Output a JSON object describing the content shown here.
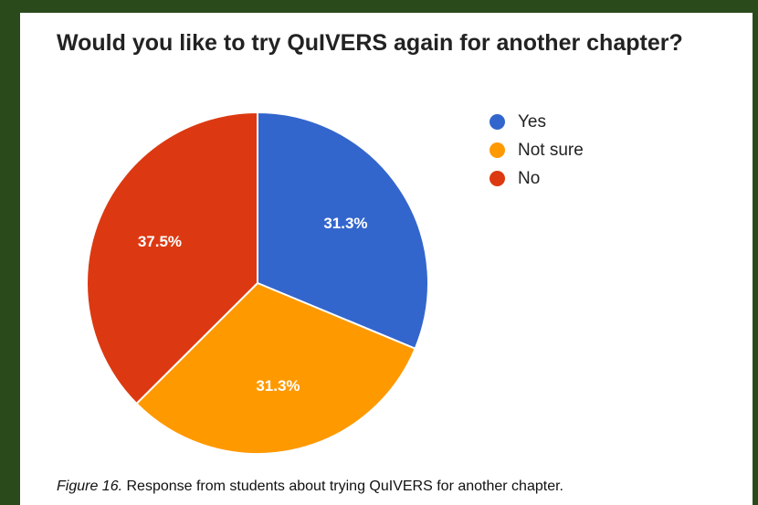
{
  "chart_data": {
    "type": "pie",
    "title": "Would you like to try QuIVERS again for another chapter?",
    "slices": [
      {
        "name": "Yes",
        "value": 31.3,
        "label": "31.3%",
        "color": "#3366cc"
      },
      {
        "name": "Not sure",
        "value": 31.3,
        "label": "31.3%",
        "color": "#ff9900"
      },
      {
        "name": "No",
        "value": 37.5,
        "label": "37.5%",
        "color": "#dc3912"
      }
    ],
    "legend_position": "right"
  },
  "caption": {
    "figure_label": "Figure 16.",
    "text": " Response from students about trying QuIVERS for another chapter."
  }
}
